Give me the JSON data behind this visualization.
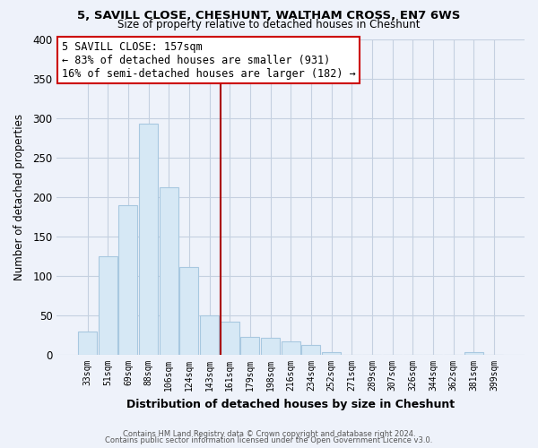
{
  "title1": "5, SAVILL CLOSE, CHESHUNT, WALTHAM CROSS, EN7 6WS",
  "title2": "Size of property relative to detached houses in Cheshunt",
  "xlabel": "Distribution of detached houses by size in Cheshunt",
  "ylabel": "Number of detached properties",
  "bar_labels": [
    "33sqm",
    "51sqm",
    "69sqm",
    "88sqm",
    "106sqm",
    "124sqm",
    "143sqm",
    "161sqm",
    "179sqm",
    "198sqm",
    "216sqm",
    "234sqm",
    "252sqm",
    "271sqm",
    "289sqm",
    "307sqm",
    "326sqm",
    "344sqm",
    "362sqm",
    "381sqm",
    "399sqm"
  ],
  "bar_heights": [
    30,
    125,
    190,
    293,
    212,
    111,
    50,
    42,
    23,
    22,
    17,
    13,
    3,
    0,
    0,
    0,
    0,
    0,
    0,
    3,
    0
  ],
  "bar_color": "#d6e8f5",
  "bar_edge_color": "#a8c8e0",
  "vline_x_idx": 7,
  "vline_color": "#aa0000",
  "annotation_title": "5 SAVILL CLOSE: 157sqm",
  "annotation_line1": "← 83% of detached houses are smaller (931)",
  "annotation_line2": "16% of semi-detached houses are larger (182) →",
  "annotation_box_color": "#ffffff",
  "annotation_box_edge": "#cc0000",
  "ylim": [
    0,
    400
  ],
  "yticks": [
    0,
    50,
    100,
    150,
    200,
    250,
    300,
    350,
    400
  ],
  "footer1": "Contains HM Land Registry data © Crown copyright and database right 2024.",
  "footer2": "Contains public sector information licensed under the Open Government Licence v3.0.",
  "bg_color": "#eef2fa",
  "grid_color": "#c5d0e0"
}
